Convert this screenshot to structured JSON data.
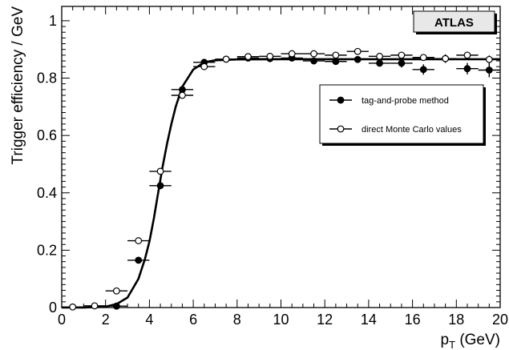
{
  "chart_data": {
    "type": "scatter",
    "title": "",
    "xlabel_main": "p",
    "xlabel_sub": "T",
    "xlabel_unit": " (GeV)",
    "ylabel": "Trigger efficiency / GeV",
    "xlim": [
      0,
      20
    ],
    "ylim": [
      0,
      1.05
    ],
    "xticks": [
      0,
      2,
      4,
      6,
      8,
      10,
      12,
      14,
      16,
      18,
      20
    ],
    "yticks": [
      0,
      0.2,
      0.4,
      0.6,
      0.8,
      1
    ],
    "ytick_labels": [
      "0",
      "0.2",
      "0.4",
      "0.6",
      "0.8",
      "1"
    ],
    "grid": false,
    "legend_position": "right-middle",
    "watermark": "ATLAS",
    "fit_curve": {
      "description_visible": false,
      "x": [
        0,
        1,
        2,
        2.5,
        3,
        3.5,
        3.8,
        4.0,
        4.2,
        4.4,
        4.6,
        4.8,
        5.0,
        5.2,
        5.5,
        6.0,
        6.5,
        7,
        8,
        10,
        12,
        14,
        16,
        18,
        20
      ],
      "y": [
        0.0,
        0.0,
        0.003,
        0.012,
        0.035,
        0.1,
        0.17,
        0.23,
        0.31,
        0.4,
        0.49,
        0.57,
        0.64,
        0.7,
        0.77,
        0.83,
        0.855,
        0.862,
        0.865,
        0.866,
        0.866,
        0.866,
        0.866,
        0.866,
        0.866
      ]
    },
    "series": [
      {
        "name": "tag-and-probe method",
        "marker": "filled-circle",
        "color": "#000000",
        "points": [
          {
            "x": 2.5,
            "y": 0.005,
            "xerr": 0.5,
            "yerr": 0.005
          },
          {
            "x": 3.5,
            "y": 0.165,
            "xerr": 0.5,
            "yerr": 0.01
          },
          {
            "x": 4.5,
            "y": 0.425,
            "xerr": 0.5,
            "yerr": 0.01
          },
          {
            "x": 5.5,
            "y": 0.76,
            "xerr": 0.5,
            "yerr": 0.01
          },
          {
            "x": 6.5,
            "y": 0.855,
            "xerr": 0.5,
            "yerr": 0.005
          },
          {
            "x": 7.5,
            "y": 0.866,
            "xerr": 0.5,
            "yerr": 0.005
          },
          {
            "x": 8.5,
            "y": 0.87,
            "xerr": 0.5,
            "yerr": 0.005
          },
          {
            "x": 9.5,
            "y": 0.868,
            "xerr": 0.5,
            "yerr": 0.005
          },
          {
            "x": 10.5,
            "y": 0.87,
            "xerr": 0.5,
            "yerr": 0.01
          },
          {
            "x": 11.5,
            "y": 0.86,
            "xerr": 0.5,
            "yerr": 0.01
          },
          {
            "x": 12.5,
            "y": 0.858,
            "xerr": 0.5,
            "yerr": 0.01
          },
          {
            "x": 13.5,
            "y": 0.865,
            "xerr": 0.5,
            "yerr": 0.01
          },
          {
            "x": 14.5,
            "y": 0.852,
            "xerr": 0.5,
            "yerr": 0.012
          },
          {
            "x": 15.5,
            "y": 0.852,
            "xerr": 0.5,
            "yerr": 0.015
          },
          {
            "x": 16.5,
            "y": 0.83,
            "xerr": 0.5,
            "yerr": 0.018
          },
          {
            "x": 17.5,
            "y": 0.868,
            "xerr": 0.5,
            "yerr": 0.015
          },
          {
            "x": 18.5,
            "y": 0.833,
            "xerr": 0.5,
            "yerr": 0.02
          },
          {
            "x": 19.5,
            "y": 0.828,
            "xerr": 0.5,
            "yerr": 0.025
          }
        ]
      },
      {
        "name": "direct Monte Carlo values",
        "marker": "open-circle",
        "color": "#000000",
        "points": [
          {
            "x": 0.5,
            "y": 0.002,
            "xerr": 0.5,
            "yerr": 0.002
          },
          {
            "x": 1.5,
            "y": 0.006,
            "xerr": 0.5,
            "yerr": 0.003
          },
          {
            "x": 2.5,
            "y": 0.058,
            "xerr": 0.5,
            "yerr": 0.006
          },
          {
            "x": 3.5,
            "y": 0.233,
            "xerr": 0.5,
            "yerr": 0.008
          },
          {
            "x": 4.5,
            "y": 0.475,
            "xerr": 0.5,
            "yerr": 0.008
          },
          {
            "x": 5.5,
            "y": 0.74,
            "xerr": 0.5,
            "yerr": 0.008
          },
          {
            "x": 6.5,
            "y": 0.84,
            "xerr": 0.5,
            "yerr": 0.005
          },
          {
            "x": 7.5,
            "y": 0.866,
            "xerr": 0.5,
            "yerr": 0.005
          },
          {
            "x": 8.5,
            "y": 0.875,
            "xerr": 0.5,
            "yerr": 0.005
          },
          {
            "x": 9.5,
            "y": 0.876,
            "xerr": 0.5,
            "yerr": 0.005
          },
          {
            "x": 10.5,
            "y": 0.885,
            "xerr": 0.5,
            "yerr": 0.006
          },
          {
            "x": 11.5,
            "y": 0.885,
            "xerr": 0.5,
            "yerr": 0.006
          },
          {
            "x": 12.5,
            "y": 0.88,
            "xerr": 0.5,
            "yerr": 0.006
          },
          {
            "x": 13.5,
            "y": 0.893,
            "xerr": 0.5,
            "yerr": 0.007
          },
          {
            "x": 14.5,
            "y": 0.876,
            "xerr": 0.5,
            "yerr": 0.008
          },
          {
            "x": 15.5,
            "y": 0.88,
            "xerr": 0.5,
            "yerr": 0.008
          },
          {
            "x": 16.5,
            "y": 0.872,
            "xerr": 0.5,
            "yerr": 0.01
          },
          {
            "x": 17.5,
            "y": 0.868,
            "xerr": 0.5,
            "yerr": 0.01
          },
          {
            "x": 18.5,
            "y": 0.88,
            "xerr": 0.5,
            "yerr": 0.012
          },
          {
            "x": 19.5,
            "y": 0.865,
            "xerr": 0.5,
            "yerr": 0.014
          }
        ]
      }
    ]
  }
}
